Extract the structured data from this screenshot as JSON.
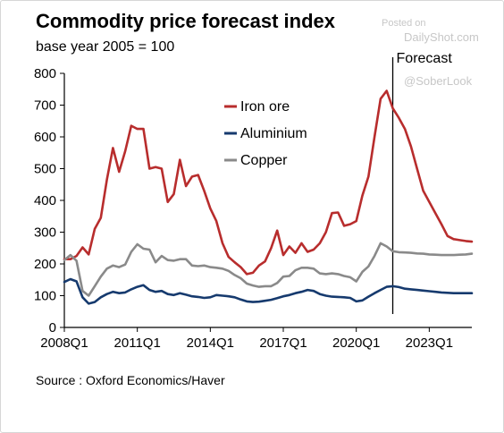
{
  "chart_data": {
    "type": "line",
    "title": "Commodity price forecast index",
    "subtitle": "base year 2005 = 100",
    "source": "Source : Oxford Economics/Haver",
    "annotation": "Forecast",
    "forecast_start_x": 2021.5,
    "xlim": [
      2008.0,
      2024.75
    ],
    "ylim": [
      0,
      800
    ],
    "yticks": [
      0,
      100,
      200,
      300,
      400,
      500,
      600,
      700,
      800
    ],
    "xticks": [
      {
        "x": 2008.0,
        "label": "2008Q1"
      },
      {
        "x": 2011.0,
        "label": "2011Q1"
      },
      {
        "x": 2014.0,
        "label": "2014Q1"
      },
      {
        "x": 2017.0,
        "label": "2017Q1"
      },
      {
        "x": 2020.0,
        "label": "2020Q1"
      },
      {
        "x": 2023.0,
        "label": "2023Q1"
      }
    ],
    "legend_position": "upper-center",
    "series": [
      {
        "name": "Iron ore",
        "color": "#b82d2d",
        "points": [
          [
            2008.0,
            215
          ],
          [
            2008.25,
            215
          ],
          [
            2008.5,
            225
          ],
          [
            2008.75,
            252
          ],
          [
            2009.0,
            230
          ],
          [
            2009.25,
            310
          ],
          [
            2009.5,
            345
          ],
          [
            2009.75,
            465
          ],
          [
            2010.0,
            565
          ],
          [
            2010.25,
            490
          ],
          [
            2010.5,
            555
          ],
          [
            2010.75,
            635
          ],
          [
            2011.0,
            625
          ],
          [
            2011.25,
            625
          ],
          [
            2011.5,
            500
          ],
          [
            2011.75,
            505
          ],
          [
            2012.0,
            500
          ],
          [
            2012.25,
            395
          ],
          [
            2012.5,
            420
          ],
          [
            2012.75,
            528
          ],
          [
            2013.0,
            445
          ],
          [
            2013.25,
            475
          ],
          [
            2013.5,
            480
          ],
          [
            2013.75,
            430
          ],
          [
            2014.0,
            375
          ],
          [
            2014.25,
            335
          ],
          [
            2014.5,
            265
          ],
          [
            2014.75,
            222
          ],
          [
            2015.0,
            205
          ],
          [
            2015.25,
            190
          ],
          [
            2015.5,
            168
          ],
          [
            2015.75,
            172
          ],
          [
            2016.0,
            195
          ],
          [
            2016.25,
            208
          ],
          [
            2016.5,
            250
          ],
          [
            2016.75,
            305
          ],
          [
            2017.0,
            228
          ],
          [
            2017.25,
            255
          ],
          [
            2017.5,
            235
          ],
          [
            2017.75,
            265
          ],
          [
            2018.0,
            238
          ],
          [
            2018.25,
            245
          ],
          [
            2018.5,
            265
          ],
          [
            2018.75,
            300
          ],
          [
            2019.0,
            360
          ],
          [
            2019.25,
            362
          ],
          [
            2019.5,
            320
          ],
          [
            2019.75,
            325
          ],
          [
            2020.0,
            335
          ],
          [
            2020.25,
            415
          ],
          [
            2020.5,
            475
          ],
          [
            2020.75,
            600
          ],
          [
            2021.0,
            720
          ],
          [
            2021.25,
            745
          ],
          [
            2021.5,
            690
          ],
          [
            2021.75,
            660
          ],
          [
            2022.0,
            625
          ],
          [
            2022.25,
            570
          ],
          [
            2022.5,
            500
          ],
          [
            2022.75,
            430
          ],
          [
            2023.0,
            395
          ],
          [
            2023.25,
            360
          ],
          [
            2023.5,
            325
          ],
          [
            2023.75,
            288
          ],
          [
            2024.0,
            278
          ],
          [
            2024.25,
            275
          ],
          [
            2024.5,
            272
          ],
          [
            2024.75,
            270
          ]
        ]
      },
      {
        "name": "Aluminium",
        "color": "#163a6e",
        "points": [
          [
            2008.0,
            143
          ],
          [
            2008.25,
            152
          ],
          [
            2008.5,
            145
          ],
          [
            2008.75,
            95
          ],
          [
            2009.0,
            75
          ],
          [
            2009.25,
            80
          ],
          [
            2009.5,
            95
          ],
          [
            2009.75,
            105
          ],
          [
            2010.0,
            112
          ],
          [
            2010.25,
            108
          ],
          [
            2010.5,
            110
          ],
          [
            2010.75,
            120
          ],
          [
            2011.0,
            128
          ],
          [
            2011.25,
            133
          ],
          [
            2011.5,
            118
          ],
          [
            2011.75,
            112
          ],
          [
            2012.0,
            115
          ],
          [
            2012.25,
            105
          ],
          [
            2012.5,
            102
          ],
          [
            2012.75,
            108
          ],
          [
            2013.0,
            103
          ],
          [
            2013.25,
            98
          ],
          [
            2013.5,
            96
          ],
          [
            2013.75,
            93
          ],
          [
            2014.0,
            95
          ],
          [
            2014.25,
            102
          ],
          [
            2014.5,
            100
          ],
          [
            2014.75,
            98
          ],
          [
            2015.0,
            95
          ],
          [
            2015.25,
            88
          ],
          [
            2015.5,
            82
          ],
          [
            2015.75,
            80
          ],
          [
            2016.0,
            81
          ],
          [
            2016.25,
            84
          ],
          [
            2016.5,
            87
          ],
          [
            2016.75,
            92
          ],
          [
            2017.0,
            98
          ],
          [
            2017.25,
            102
          ],
          [
            2017.5,
            108
          ],
          [
            2017.75,
            112
          ],
          [
            2018.0,
            118
          ],
          [
            2018.25,
            115
          ],
          [
            2018.5,
            105
          ],
          [
            2018.75,
            100
          ],
          [
            2019.0,
            97
          ],
          [
            2019.25,
            96
          ],
          [
            2019.5,
            95
          ],
          [
            2019.75,
            93
          ],
          [
            2020.0,
            82
          ],
          [
            2020.25,
            85
          ],
          [
            2020.5,
            97
          ],
          [
            2020.75,
            108
          ],
          [
            2021.0,
            118
          ],
          [
            2021.25,
            128
          ],
          [
            2021.5,
            130
          ],
          [
            2021.75,
            127
          ],
          [
            2022.0,
            122
          ],
          [
            2022.25,
            120
          ],
          [
            2022.5,
            118
          ],
          [
            2022.75,
            116
          ],
          [
            2023.0,
            114
          ],
          [
            2023.25,
            112
          ],
          [
            2023.5,
            110
          ],
          [
            2023.75,
            109
          ],
          [
            2024.0,
            108
          ],
          [
            2024.25,
            108
          ],
          [
            2024.5,
            108
          ],
          [
            2024.75,
            108
          ]
        ]
      },
      {
        "name": "Copper",
        "color": "#8a8a8a",
        "points": [
          [
            2008.0,
            212
          ],
          [
            2008.25,
            228
          ],
          [
            2008.5,
            210
          ],
          [
            2008.75,
            115
          ],
          [
            2009.0,
            100
          ],
          [
            2009.25,
            130
          ],
          [
            2009.5,
            160
          ],
          [
            2009.75,
            185
          ],
          [
            2010.0,
            195
          ],
          [
            2010.25,
            190
          ],
          [
            2010.5,
            198
          ],
          [
            2010.75,
            238
          ],
          [
            2011.0,
            262
          ],
          [
            2011.25,
            248
          ],
          [
            2011.5,
            245
          ],
          [
            2011.75,
            205
          ],
          [
            2012.0,
            225
          ],
          [
            2012.25,
            212
          ],
          [
            2012.5,
            210
          ],
          [
            2012.75,
            215
          ],
          [
            2013.0,
            215
          ],
          [
            2013.25,
            195
          ],
          [
            2013.5,
            193
          ],
          [
            2013.75,
            195
          ],
          [
            2014.0,
            190
          ],
          [
            2014.25,
            188
          ],
          [
            2014.5,
            185
          ],
          [
            2014.75,
            178
          ],
          [
            2015.0,
            165
          ],
          [
            2015.25,
            155
          ],
          [
            2015.5,
            138
          ],
          [
            2015.75,
            132
          ],
          [
            2016.0,
            128
          ],
          [
            2016.25,
            130
          ],
          [
            2016.5,
            130
          ],
          [
            2016.75,
            140
          ],
          [
            2017.0,
            160
          ],
          [
            2017.25,
            162
          ],
          [
            2017.5,
            180
          ],
          [
            2017.75,
            188
          ],
          [
            2018.0,
            188
          ],
          [
            2018.25,
            185
          ],
          [
            2018.5,
            170
          ],
          [
            2018.75,
            168
          ],
          [
            2019.0,
            170
          ],
          [
            2019.25,
            168
          ],
          [
            2019.5,
            162
          ],
          [
            2019.75,
            158
          ],
          [
            2020.0,
            145
          ],
          [
            2020.25,
            175
          ],
          [
            2020.5,
            192
          ],
          [
            2020.75,
            225
          ],
          [
            2021.0,
            265
          ],
          [
            2021.25,
            255
          ],
          [
            2021.5,
            240
          ],
          [
            2021.75,
            237
          ],
          [
            2022.0,
            236
          ],
          [
            2022.25,
            235
          ],
          [
            2022.5,
            233
          ],
          [
            2022.75,
            232
          ],
          [
            2023.0,
            230
          ],
          [
            2023.25,
            229
          ],
          [
            2023.5,
            228
          ],
          [
            2023.75,
            228
          ],
          [
            2024.0,
            228
          ],
          [
            2024.25,
            229
          ],
          [
            2024.5,
            230
          ],
          [
            2024.75,
            232
          ]
        ]
      }
    ]
  },
  "watermark": {
    "posted_on": "Posted on",
    "site": "DailyShot.com",
    "handle": "@SoberLook"
  }
}
